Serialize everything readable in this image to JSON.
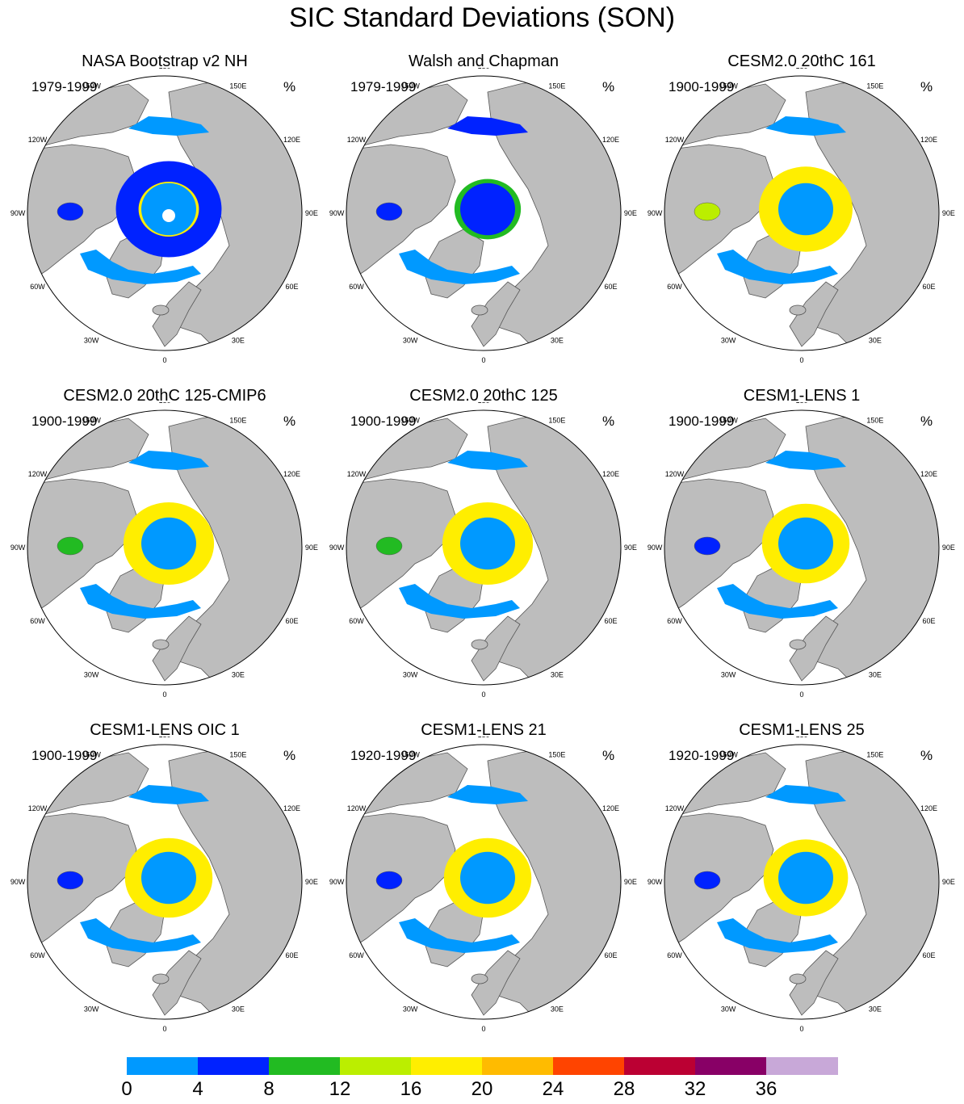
{
  "title": "SIC Standard Deviations (SON)",
  "panels": [
    {
      "name": "NASA Bootstrap v2 NH",
      "period": "1979-1999",
      "units": "%",
      "pole_hole": true,
      "ring": [
        [
          "#0022ff",
          0.3
        ],
        [
          "#ffee00",
          0.26
        ],
        [
          "#22bb22",
          0.14
        ]
      ],
      "interior": "#0099ff",
      "hudson": "#0022ff"
    },
    {
      "name": "Walsh and Chapman",
      "period": "1979-1999",
      "units": "%",
      "pole_hole": false,
      "ring": [
        [
          "#22bb22",
          0.22
        ],
        [
          "#bbee00",
          0.12
        ],
        [
          "#0022ff",
          0.1
        ]
      ],
      "interior": "#0022ff",
      "hudson": "#0022ff"
    },
    {
      "name": "CESM2.0 20thC 161",
      "period": "1900-1999",
      "units": "%",
      "pole_hole": false,
      "ring": [
        [
          "#ffee00",
          0.26
        ],
        [
          "#bbee00",
          0.16
        ],
        [
          "#22bb22",
          0.12
        ],
        [
          "#0022ff",
          0.08
        ]
      ],
      "interior": "#0099ff",
      "hudson": "#bbee00"
    },
    {
      "name": "CESM2.0 20thC 125-CMIP6",
      "period": "1900-1999",
      "units": "%",
      "pole_hole": false,
      "ring": [
        [
          "#ffee00",
          0.28
        ],
        [
          "#ffbb00",
          0.12
        ],
        [
          "#22bb22",
          0.12
        ],
        [
          "#0022ff",
          0.08
        ]
      ],
      "interior": "#0099ff",
      "hudson": "#22bb22"
    },
    {
      "name": "CESM2.0 20thC 125",
      "period": "1900-1999",
      "units": "%",
      "pole_hole": false,
      "ring": [
        [
          "#ffee00",
          0.26
        ],
        [
          "#ff4400",
          0.12
        ],
        [
          "#22bb22",
          0.12
        ],
        [
          "#0022ff",
          0.1
        ]
      ],
      "interior": "#0099ff",
      "hudson": "#22bb22"
    },
    {
      "name": "CESM1-LENS 1",
      "period": "1900-1999",
      "units": "%",
      "pole_hole": false,
      "ring": [
        [
          "#ffee00",
          0.3
        ],
        [
          "#ffbb00",
          0.08
        ],
        [
          "#22bb22",
          0.12
        ],
        [
          "#0022ff",
          0.08
        ]
      ],
      "interior": "#0099ff",
      "hudson": "#0022ff"
    },
    {
      "name": "CESM1-LENS OIC 1",
      "period": "1900-1999",
      "units": "%",
      "pole_hole": false,
      "ring": [
        [
          "#ffee00",
          0.26
        ],
        [
          "#ffbb00",
          0.12
        ],
        [
          "#22bb22",
          0.14
        ],
        [
          "#0022ff",
          0.06
        ]
      ],
      "interior": "#0099ff",
      "hudson": "#0022ff"
    },
    {
      "name": "CESM1-LENS 21",
      "period": "1920-1999",
      "units": "%",
      "pole_hole": false,
      "ring": [
        [
          "#ffee00",
          0.3
        ],
        [
          "#ffbb00",
          0.1
        ],
        [
          "#22bb22",
          0.12
        ],
        [
          "#0022ff",
          0.06
        ]
      ],
      "interior": "#0099ff",
      "hudson": "#0022ff"
    },
    {
      "name": "CESM1-LENS 25",
      "period": "1920-1999",
      "units": "%",
      "pole_hole": false,
      "ring": [
        [
          "#ffee00",
          0.26
        ],
        [
          "#ff4400",
          0.1
        ],
        [
          "#22bb22",
          0.14
        ],
        [
          "#0022ff",
          0.06
        ]
      ],
      "interior": "#0099ff",
      "hudson": "#0022ff"
    }
  ],
  "longitude_labels": [
    "180",
    "150E",
    "120E",
    "90E",
    "60E",
    "30E",
    "0",
    "30W",
    "60W",
    "90W",
    "120W",
    "150W"
  ],
  "colorbar": {
    "levels": [
      "0",
      "4",
      "8",
      "12",
      "16",
      "20",
      "24",
      "28",
      "32",
      "36"
    ],
    "colors": [
      "#0099ff",
      "#0022ff",
      "#22bb22",
      "#bbee00",
      "#ffee00",
      "#ffbb00",
      "#ff4400",
      "#bb0033",
      "#880066",
      "#c8a8d8"
    ]
  },
  "map_colors": {
    "land": "#bdbdbd",
    "ocean": "#ffffff",
    "coast": "#555555"
  }
}
